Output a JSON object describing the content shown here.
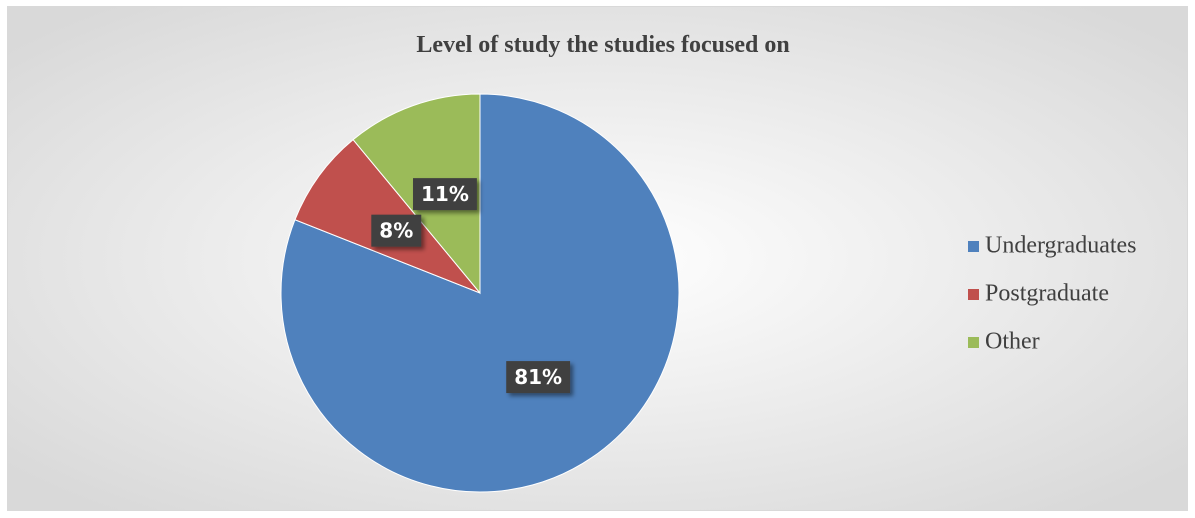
{
  "chart_data": {
    "type": "pie",
    "title": "Level of study the studies focused on",
    "categories": [
      "Undergraduates",
      "Postgraduate",
      "Other"
    ],
    "values": [
      81,
      8,
      11
    ],
    "value_labels": [
      "81%",
      "8%",
      "11%"
    ],
    "colors": [
      "#4f81bd",
      "#c0504d",
      "#9bbb59"
    ],
    "legend": "right"
  }
}
